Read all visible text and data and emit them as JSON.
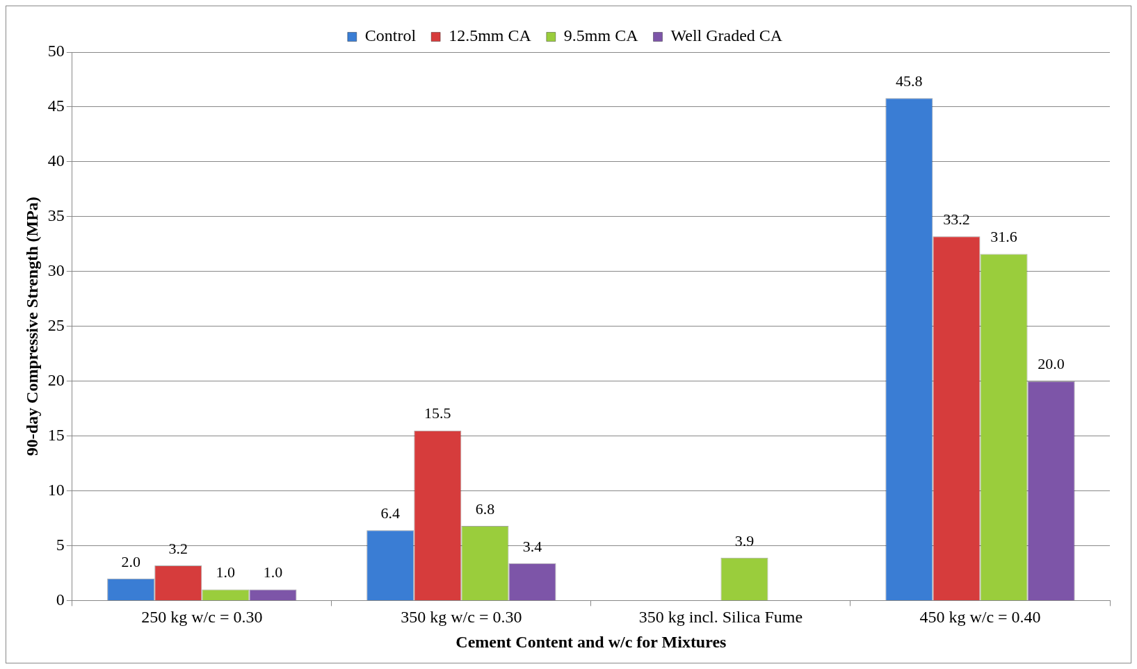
{
  "chart_data": {
    "type": "bar",
    "xlabel": "Cement Content and w/c for Mixtures",
    "ylabel": "90-day Compressive Strength (MPa)",
    "categories": [
      "250 kg w/c = 0.30",
      "350 kg w/c = 0.30",
      "350 kg incl. Silica Fume",
      "450 kg w/c = 0.40"
    ],
    "series": [
      {
        "name": "Control",
        "color": "#3a7dd4",
        "values": [
          2.0,
          6.4,
          null,
          45.8
        ],
        "value_labels": [
          "2.0",
          "6.4",
          null,
          "45.8"
        ]
      },
      {
        "name": "12.5mm CA",
        "color": "#d63c3c",
        "values": [
          3.2,
          15.5,
          null,
          33.2
        ],
        "value_labels": [
          "3.2",
          "15.5",
          null,
          "33.2"
        ]
      },
      {
        "name": "9.5mm CA",
        "color": "#9acd3c",
        "values": [
          1.0,
          6.8,
          3.9,
          31.6
        ],
        "value_labels": [
          "1.0",
          "6.8",
          "3.9",
          "31.6"
        ]
      },
      {
        "name": "Well Graded CA",
        "color": "#7d55a8",
        "values": [
          1.0,
          3.4,
          null,
          20.0
        ],
        "value_labels": [
          "1.0",
          "3.4",
          null,
          "20.0"
        ]
      }
    ],
    "ylim": [
      0,
      50
    ],
    "yticks": [
      0,
      5,
      10,
      15,
      20,
      25,
      30,
      35,
      40,
      45,
      50
    ],
    "grid": "y",
    "legend": "top"
  }
}
